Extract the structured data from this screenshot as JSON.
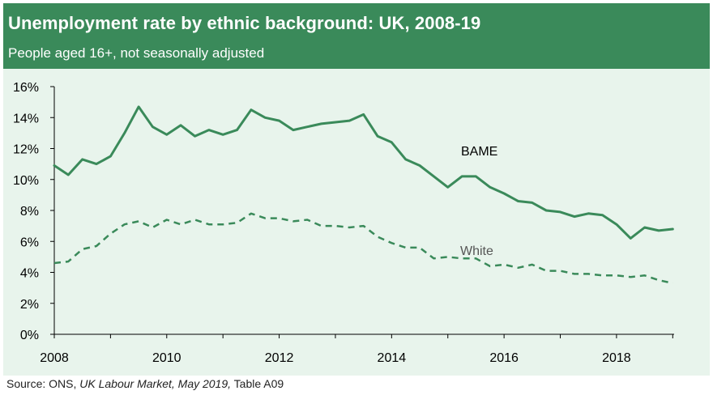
{
  "header": {
    "title": "Unemployment rate by ethnic background: UK, 2008-19",
    "subtitle": "People aged 16+, not seasonally adjusted"
  },
  "source": {
    "prefix": "Source: ONS, ",
    "publication": "UK Labour Market, May 2019,",
    "table": "Table A09"
  },
  "colors": {
    "header_bg": "#3a8a5a",
    "plot_bg": "#e8f4ec",
    "series_line": "#3a8a5a"
  },
  "chart_data": {
    "type": "line",
    "title": "Unemployment rate by ethnic background: UK, 2008-19",
    "subtitle": "People aged 16+, not seasonally adjusted",
    "xlabel": "",
    "ylabel": "",
    "xlim": [
      2008,
      2019.5
    ],
    "ylim": [
      0,
      16
    ],
    "x_ticks": [
      2008,
      2010,
      2012,
      2014,
      2016,
      2018
    ],
    "y_ticks": [
      0,
      2,
      4,
      6,
      8,
      10,
      12,
      14,
      16
    ],
    "y_tick_labels": [
      "0%",
      "2%",
      "4%",
      "6%",
      "8%",
      "10%",
      "12%",
      "14%",
      "16%"
    ],
    "grid": false,
    "legend": "inline labels",
    "x": [
      2008.0,
      2008.25,
      2008.5,
      2008.75,
      2009.0,
      2009.25,
      2009.5,
      2009.75,
      2010.0,
      2010.25,
      2010.5,
      2010.75,
      2011.0,
      2011.25,
      2011.5,
      2011.75,
      2012.0,
      2012.25,
      2012.5,
      2012.75,
      2013.0,
      2013.25,
      2013.5,
      2013.75,
      2014.0,
      2014.25,
      2014.5,
      2014.75,
      2015.0,
      2015.25,
      2015.5,
      2015.75,
      2016.0,
      2016.25,
      2016.5,
      2016.75,
      2017.0,
      2017.25,
      2017.5,
      2017.75,
      2018.0,
      2018.25,
      2018.5,
      2018.75,
      2019.0
    ],
    "series": [
      {
        "name": "BAME",
        "style": "solid",
        "values": [
          10.9,
          10.3,
          11.3,
          11.0,
          11.5,
          13.0,
          14.7,
          13.4,
          12.9,
          13.5,
          12.8,
          13.2,
          12.9,
          13.2,
          14.5,
          14.0,
          13.8,
          13.2,
          13.4,
          13.6,
          13.7,
          13.8,
          14.2,
          12.8,
          12.4,
          11.3,
          10.9,
          10.2,
          9.5,
          10.2,
          10.2,
          9.5,
          9.1,
          8.6,
          8.5,
          8.0,
          7.9,
          7.6,
          7.8,
          7.7,
          7.1,
          6.2,
          6.9,
          6.7,
          6.8
        ]
      },
      {
        "name": "White",
        "style": "dashed",
        "values": [
          4.6,
          4.7,
          5.5,
          5.7,
          6.5,
          7.1,
          7.3,
          6.9,
          7.4,
          7.1,
          7.4,
          7.1,
          7.1,
          7.2,
          7.8,
          7.5,
          7.5,
          7.3,
          7.4,
          7.0,
          7.0,
          6.9,
          7.0,
          6.3,
          5.9,
          5.6,
          5.6,
          4.9,
          5.0,
          4.9,
          4.9,
          4.4,
          4.5,
          4.3,
          4.5,
          4.1,
          4.1,
          3.9,
          3.9,
          3.8,
          3.8,
          3.7,
          3.8,
          3.5,
          3.3
        ]
      }
    ]
  }
}
